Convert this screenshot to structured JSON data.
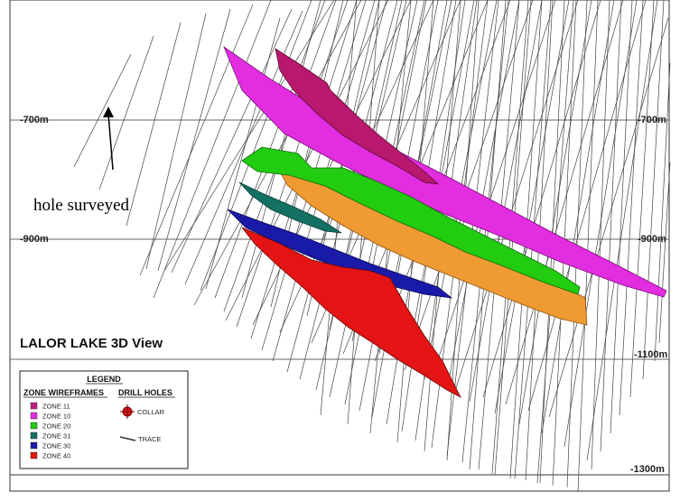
{
  "title": "LALOR LAKE 3D View",
  "annotation": "hole surveyed",
  "depth_labels": [
    "-700m",
    "-900m",
    "-1100m",
    "-1300m"
  ],
  "legend": {
    "heading": "LEGEND",
    "zones_heading": "ZONE WIREFRAMES",
    "drill_heading": "DRILL HOLES",
    "zones": [
      {
        "label": "ZONE 11",
        "color": "#c21f7a"
      },
      {
        "label": "ZONE 10",
        "color": "#e22ee0"
      },
      {
        "label": "ZONE 20",
        "color": "#22cc11"
      },
      {
        "label": "ZONE 31",
        "color": "#137063"
      },
      {
        "label": "ZONE 30",
        "color": "#1a1aa8"
      },
      {
        "label": "ZONE 40",
        "color": "#e41414"
      }
    ],
    "drill": [
      {
        "label": "COLLAR",
        "icon": "collar-icon"
      },
      {
        "label": "TRACE",
        "icon": "trace-icon"
      }
    ]
  },
  "colors": {
    "zone_orange": "#f09a33",
    "grid": "#555555",
    "trace": "#444444"
  }
}
